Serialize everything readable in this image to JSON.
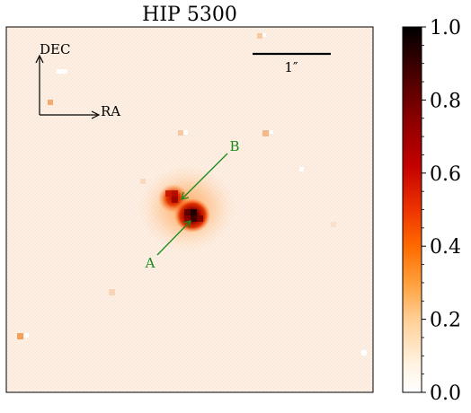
{
  "title": "HIP 5300",
  "compass": {
    "north_label": "DEC",
    "east_label": "RA"
  },
  "scale_bar": {
    "label": "1″"
  },
  "components": [
    {
      "label": "A"
    },
    {
      "label": "B"
    }
  ],
  "annotation_color": "#1a8a1a",
  "colorbar": {
    "colormap": "gist_heat_r",
    "range": [
      0.0,
      1.0
    ],
    "tick_labels": [
      "0.0",
      "0.2",
      "0.4",
      "0.6",
      "0.8",
      "1.0"
    ]
  },
  "colors": {
    "background": "#fdf0e6",
    "frame": "#000000"
  }
}
